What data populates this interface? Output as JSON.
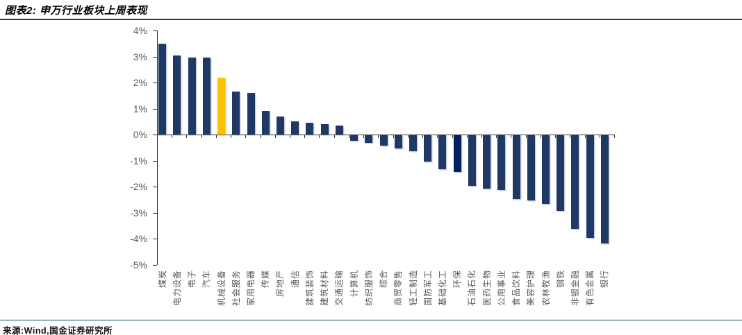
{
  "header": {
    "title": "图表2: 申万行业板块上周表现"
  },
  "footer": {
    "source": "来源:Wind,国金证券研究所"
  },
  "colors": {
    "bar_default": "#1F3864",
    "bar_highlight": "#FFC000",
    "bar_dark": "#002060",
    "rule": "#16415E",
    "axis": "#2B2B2B",
    "tick_label": "#595959"
  },
  "chart_data": {
    "type": "bar",
    "title": "申万行业板块上周表现",
    "xlabel": "",
    "ylabel": "",
    "unit": "%",
    "ylim": [
      -5,
      4
    ],
    "ytick_step": 1,
    "ytick_labels": [
      "4%",
      "3%",
      "2%",
      "1%",
      "0%",
      "-1%",
      "-2%",
      "-3%",
      "-4%",
      "-5%"
    ],
    "grid": false,
    "legend": false,
    "categories": [
      "煤炭",
      "电力设备",
      "电子",
      "汽车",
      "机械设备",
      "社会服务",
      "家用电器",
      "传媒",
      "房地产",
      "通信",
      "建筑装饰",
      "建筑材料",
      "交通运输",
      "计算机",
      "纺织服饰",
      "综合",
      "商贸零售",
      "轻工制造",
      "国防军工",
      "基础化工",
      "环保",
      "石油石化",
      "医药生物",
      "公用事业",
      "食品饮料",
      "美容护理",
      "农林牧渔",
      "钢铁",
      "非银金融",
      "有色金属",
      "银行"
    ],
    "values": [
      3.5,
      3.05,
      2.95,
      2.95,
      2.2,
      1.65,
      1.6,
      0.9,
      0.7,
      0.5,
      0.45,
      0.4,
      0.35,
      -0.2,
      -0.3,
      -0.4,
      -0.5,
      -0.6,
      -1.0,
      -1.3,
      -1.4,
      -1.95,
      -2.05,
      -2.1,
      -2.45,
      -2.5,
      -2.65,
      -2.9,
      -3.6,
      -3.95,
      -4.15
    ],
    "highlight": {
      "category": "机械设备",
      "color": "#FFC000"
    },
    "secondary_highlight": {
      "category": "环保",
      "color": "#002060"
    }
  }
}
